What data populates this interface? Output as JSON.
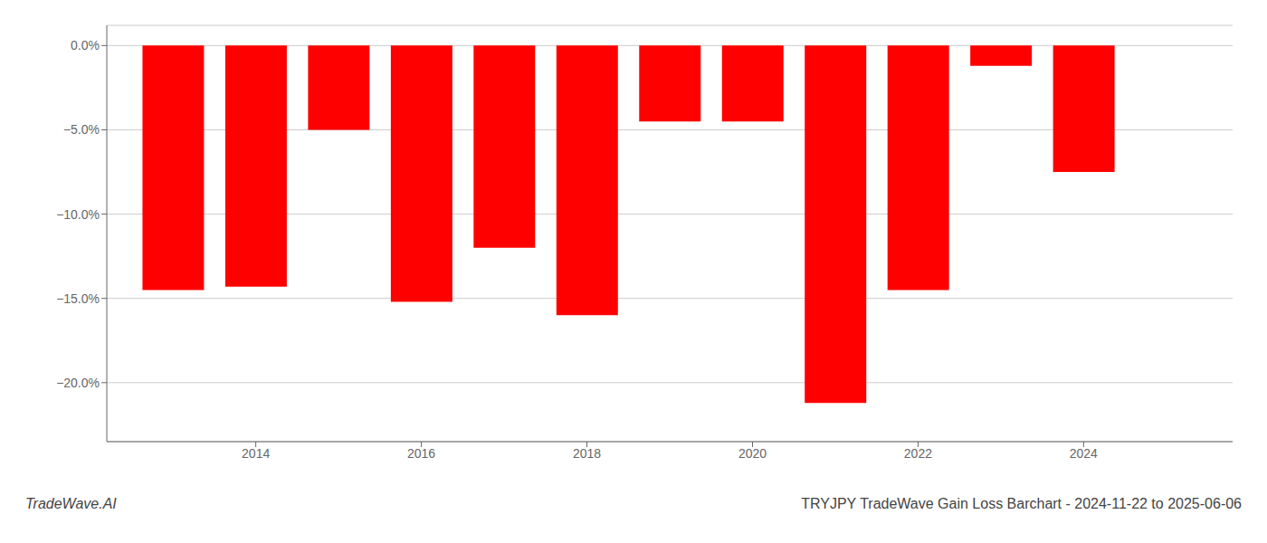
{
  "chart_data": {
    "type": "bar",
    "title": "TRYJPY TradeWave Gain Loss Barchart - 2024-11-22 to 2025-06-06",
    "annotations": [
      "TradeWave.AI"
    ],
    "x": [
      2013,
      2014,
      2015,
      2016,
      2017,
      2018,
      2019,
      2020,
      2021,
      2022,
      2023,
      2024
    ],
    "values": [
      -14.5,
      -14.3,
      -5.0,
      -15.2,
      -12.0,
      -16.0,
      -4.5,
      -4.5,
      -21.2,
      -14.5,
      -1.2,
      -7.5
    ],
    "color": "#ff0000",
    "xlim": [
      2012.2,
      2025.8
    ],
    "xticks": [
      2014,
      2016,
      2018,
      2020,
      2022,
      2024
    ],
    "ylim": [
      -23.5,
      1.2
    ],
    "yticks": [
      {
        "value": 0.0,
        "label": "0.0%"
      },
      {
        "value": -5.0,
        "label": "−5.0%"
      },
      {
        "value": -10.0,
        "label": "−10.0%"
      },
      {
        "value": -15.0,
        "label": "−15.0%"
      },
      {
        "value": -20.0,
        "label": "−20.0%"
      }
    ],
    "grid": true
  }
}
